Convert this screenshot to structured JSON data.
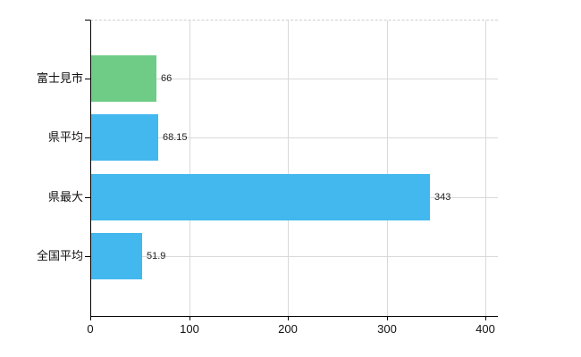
{
  "chart_data": {
    "type": "bar",
    "orientation": "horizontal",
    "title": "",
    "xlabel": "",
    "ylabel": "",
    "categories": [
      "富士見市",
      "県平均",
      "県最大",
      "全国平均"
    ],
    "values": [
      66,
      68.15,
      343,
      51.9
    ],
    "value_labels": [
      "66",
      "68.15",
      "343",
      "51.9"
    ],
    "bar_colors": [
      "#6ecc86",
      "#42b8ee",
      "#42b8ee",
      "#42b8ee"
    ],
    "xlim": [
      0,
      400
    ],
    "x_tick_values": [
      0,
      100,
      200,
      300,
      400
    ],
    "x_tick_labels": [
      "0",
      "100",
      "200",
      "300",
      "400"
    ],
    "gridline_values_x": [
      100,
      200,
      300,
      400
    ],
    "grid": true,
    "legend": false,
    "colors": {
      "grid": "#d9d9d9",
      "axis": "#000000",
      "top_border": "#cfcfcf",
      "background": "#ffffff",
      "category_text": "#111111",
      "value_text": "#222222"
    }
  }
}
